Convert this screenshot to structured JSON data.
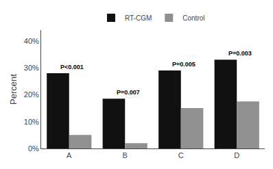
{
  "chart_data": {
    "type": "bar",
    "categories": [
      "A",
      "B",
      "C",
      "D"
    ],
    "series": [
      {
        "name": "RT-CGM",
        "color": "#111111",
        "values": [
          0.28,
          0.185,
          0.29,
          0.33
        ]
      },
      {
        "name": "Control",
        "color": "#909090",
        "values": [
          0.05,
          0.02,
          0.15,
          0.175
        ]
      }
    ],
    "ylabel": "Percent",
    "ylim": [
      0,
      0.44
    ],
    "yticks": [
      {
        "value": 0.0,
        "label": "0%"
      },
      {
        "value": 0.1,
        "label": "10%"
      },
      {
        "value": 0.2,
        "label": "20%"
      },
      {
        "value": 0.3,
        "label": "30%"
      },
      {
        "value": 0.4,
        "label": "40%"
      }
    ],
    "annotations": [
      {
        "category": "A",
        "text": "P<0.001"
      },
      {
        "category": "B",
        "text": "P=0.007"
      },
      {
        "category": "C",
        "text": "P=0.005"
      },
      {
        "category": "D",
        "text": "P=0.003"
      }
    ],
    "legend": "top",
    "grid": false
  }
}
